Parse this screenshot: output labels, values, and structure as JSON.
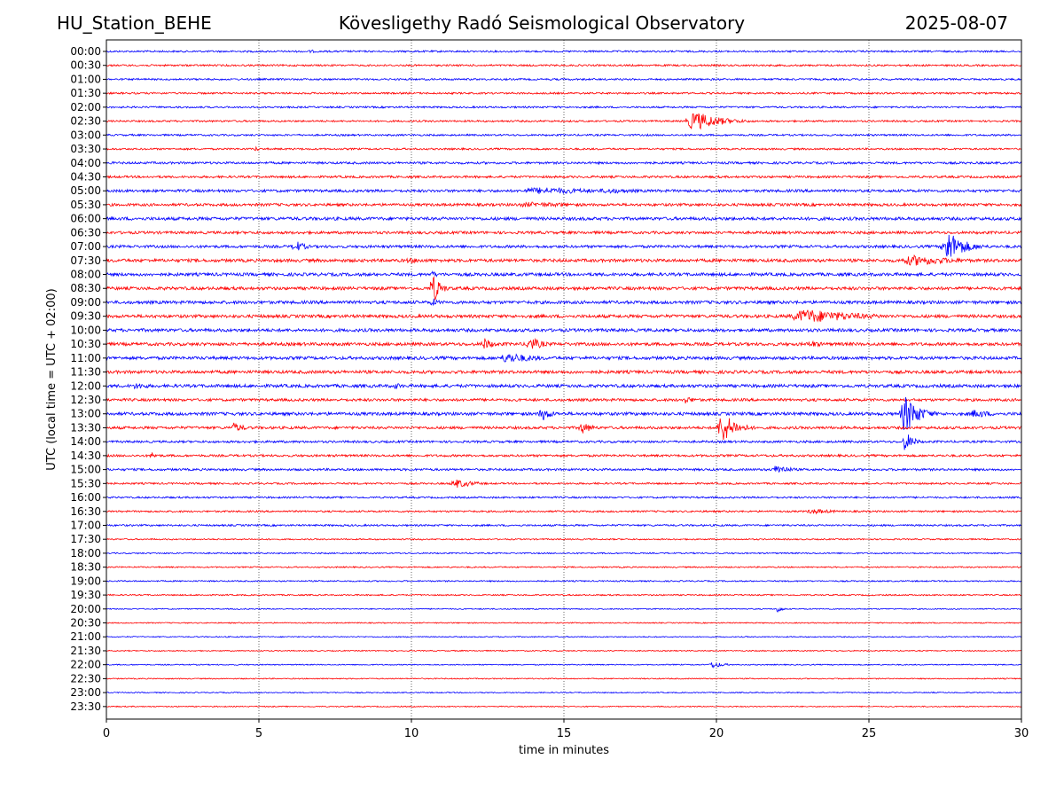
{
  "header": {
    "station": "HU_Station_BEHE",
    "observatory": "Kövesligethy Radó Seismological Observatory",
    "date": "2025-08-07"
  },
  "chart_data": {
    "type": "line",
    "title": "Kövesligethy Radó Seismological Observatory",
    "xlabel": "time in minutes",
    "ylabel": "UTC (local time = UTC + 02:00)",
    "xlim": [
      0,
      30
    ],
    "xticks": [
      0,
      5,
      10,
      15,
      20,
      25,
      30
    ],
    "grid": "vertical dotted at x ticks",
    "colors": [
      "#0000ff",
      "#ff0000"
    ],
    "rows": [
      {
        "label": "00:00",
        "color": "#0000ff",
        "noise": 2,
        "events": [
          [
            6.7,
            2,
            0.2
          ]
        ]
      },
      {
        "label": "00:30",
        "color": "#ff0000",
        "noise": 2,
        "events": []
      },
      {
        "label": "01:00",
        "color": "#0000ff",
        "noise": 2,
        "events": []
      },
      {
        "label": "01:30",
        "color": "#ff0000",
        "noise": 2,
        "events": []
      },
      {
        "label": "02:00",
        "color": "#0000ff",
        "noise": 2,
        "events": []
      },
      {
        "label": "02:30",
        "color": "#ff0000",
        "noise": 2,
        "events": [
          [
            19.3,
            11,
            0.8
          ]
        ]
      },
      {
        "label": "03:00",
        "color": "#0000ff",
        "noise": 2,
        "events": []
      },
      {
        "label": "03:30",
        "color": "#ff0000",
        "noise": 2,
        "events": [
          [
            4.9,
            3,
            0.1
          ],
          [
            23.5,
            2,
            0.2
          ]
        ]
      },
      {
        "label": "04:00",
        "color": "#0000ff",
        "noise": 2.5,
        "events": []
      },
      {
        "label": "04:30",
        "color": "#ff0000",
        "noise": 2.5,
        "events": []
      },
      {
        "label": "05:00",
        "color": "#0000ff",
        "noise": 3,
        "events": [
          [
            14.3,
            4,
            2.5
          ],
          [
            16.5,
            3,
            1.5
          ]
        ]
      },
      {
        "label": "05:30",
        "color": "#ff0000",
        "noise": 3,
        "events": [
          [
            14,
            3,
            2.5
          ]
        ]
      },
      {
        "label": "06:00",
        "color": "#0000ff",
        "noise": 3.5,
        "events": []
      },
      {
        "label": "06:30",
        "color": "#ff0000",
        "noise": 3,
        "events": []
      },
      {
        "label": "07:00",
        "color": "#0000ff",
        "noise": 3,
        "events": [
          [
            6.2,
            7,
            0.3
          ],
          [
            27.6,
            18,
            0.5
          ]
        ]
      },
      {
        "label": "07:30",
        "color": "#ff0000",
        "noise": 3.5,
        "events": [
          [
            10,
            3,
            1
          ],
          [
            26.5,
            6,
            1.5
          ]
        ]
      },
      {
        "label": "08:00",
        "color": "#0000ff",
        "noise": 3.5,
        "events": [
          [
            10.7,
            5,
            0.1
          ]
        ]
      },
      {
        "label": "08:30",
        "color": "#ff0000",
        "noise": 3.5,
        "events": [
          [
            10.7,
            18,
            0.2
          ]
        ]
      },
      {
        "label": "09:00",
        "color": "#0000ff",
        "noise": 3.5,
        "events": [
          [
            10.7,
            5,
            0.2
          ]
        ]
      },
      {
        "label": "09:30",
        "color": "#ff0000",
        "noise": 3.5,
        "events": [
          [
            23,
            8,
            1.8
          ]
        ]
      },
      {
        "label": "10:00",
        "color": "#0000ff",
        "noise": 3.5,
        "events": []
      },
      {
        "label": "10:30",
        "color": "#ff0000",
        "noise": 3.5,
        "events": [
          [
            12.4,
            7,
            0.3
          ],
          [
            13.9,
            8,
            0.4
          ],
          [
            23.1,
            4,
            0.5
          ]
        ]
      },
      {
        "label": "11:00",
        "color": "#0000ff",
        "noise": 3.5,
        "events": [
          [
            13.2,
            6,
            1.0
          ]
        ]
      },
      {
        "label": "11:30",
        "color": "#ff0000",
        "noise": 3.5,
        "events": []
      },
      {
        "label": "12:00",
        "color": "#0000ff",
        "noise": 3.5,
        "events": [
          [
            1,
            4,
            0.5
          ],
          [
            9.5,
            4,
            0.2
          ]
        ]
      },
      {
        "label": "12:30",
        "color": "#ff0000",
        "noise": 3,
        "events": [
          [
            19,
            4,
            0.4
          ]
        ]
      },
      {
        "label": "13:00",
        "color": "#0000ff",
        "noise": 3.5,
        "events": [
          [
            14.3,
            8,
            0.3
          ],
          [
            26.2,
            22,
            0.4
          ],
          [
            28.5,
            5,
            0.6
          ]
        ]
      },
      {
        "label": "13:30",
        "color": "#ff0000",
        "noise": 3,
        "events": [
          [
            4.2,
            6,
            0.3
          ],
          [
            15.6,
            7,
            0.3
          ],
          [
            20.2,
            18,
            0.4
          ]
        ]
      },
      {
        "label": "14:00",
        "color": "#0000ff",
        "noise": 2.5,
        "events": [
          [
            26.2,
            12,
            0.2
          ]
        ]
      },
      {
        "label": "14:30",
        "color": "#ff0000",
        "noise": 2.5,
        "events": [
          [
            1.5,
            4,
            0.2
          ]
        ]
      },
      {
        "label": "15:00",
        "color": "#0000ff",
        "noise": 2.5,
        "events": [
          [
            22,
            6,
            0.4
          ]
        ]
      },
      {
        "label": "15:30",
        "color": "#ff0000",
        "noise": 2,
        "events": [
          [
            11.5,
            5,
            0.6
          ]
        ]
      },
      {
        "label": "16:00",
        "color": "#0000ff",
        "noise": 2,
        "events": []
      },
      {
        "label": "16:30",
        "color": "#ff0000",
        "noise": 2,
        "events": [
          [
            23.2,
            3,
            0.8
          ]
        ]
      },
      {
        "label": "17:00",
        "color": "#0000ff",
        "noise": 2,
        "events": []
      },
      {
        "label": "17:30",
        "color": "#ff0000",
        "noise": 1.5,
        "events": []
      },
      {
        "label": "18:00",
        "color": "#0000ff",
        "noise": 1.5,
        "events": []
      },
      {
        "label": "18:30",
        "color": "#ff0000",
        "noise": 1.5,
        "events": []
      },
      {
        "label": "19:00",
        "color": "#0000ff",
        "noise": 1.5,
        "events": []
      },
      {
        "label": "19:30",
        "color": "#ff0000",
        "noise": 1.5,
        "events": []
      },
      {
        "label": "20:00",
        "color": "#0000ff",
        "noise": 1.2,
        "events": [
          [
            22,
            5,
            0.1
          ]
        ]
      },
      {
        "label": "20:30",
        "color": "#ff0000",
        "noise": 1.2,
        "events": []
      },
      {
        "label": "21:00",
        "color": "#0000ff",
        "noise": 1.2,
        "events": []
      },
      {
        "label": "21:30",
        "color": "#ff0000",
        "noise": 1.2,
        "events": []
      },
      {
        "label": "22:00",
        "color": "#0000ff",
        "noise": 1.2,
        "events": [
          [
            19.9,
            4,
            0.3
          ]
        ]
      },
      {
        "label": "22:30",
        "color": "#ff0000",
        "noise": 1.2,
        "events": []
      },
      {
        "label": "23:00",
        "color": "#0000ff",
        "noise": 1.2,
        "events": []
      },
      {
        "label": "23:30",
        "color": "#ff0000",
        "noise": 1.2,
        "events": []
      }
    ]
  }
}
